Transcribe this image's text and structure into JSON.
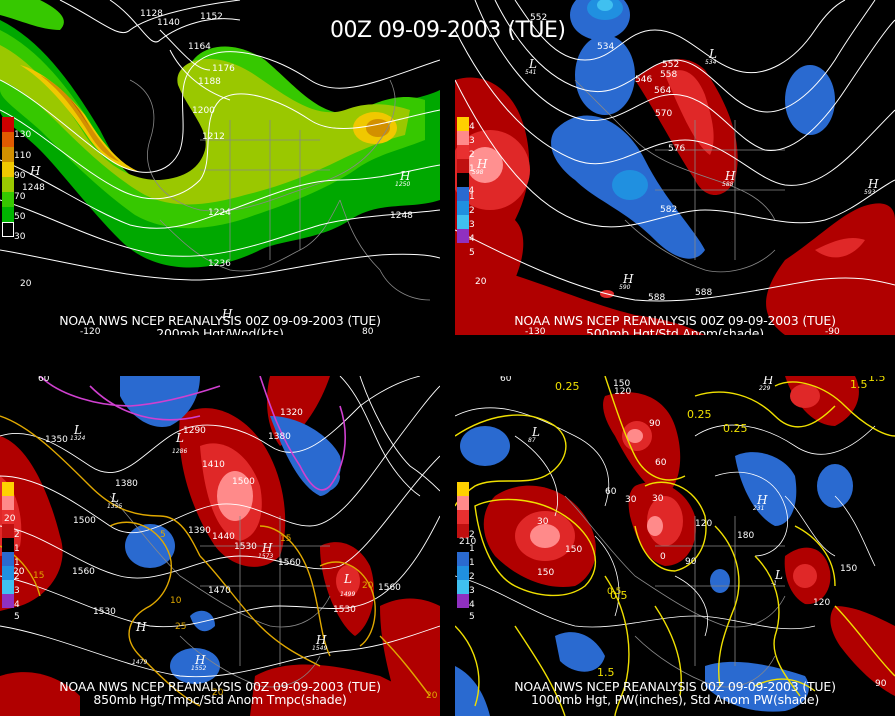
{
  "main_title": "00Z 09-09-2003 (TUE)",
  "panels": [
    {
      "id": "tl",
      "title_line1": "NOAA NWS NCEP REANALYSIS 00Z 09-09-2003 (TUE)",
      "title_line2": "200mb Hgt/Wnd(kts)",
      "legend": {
        "colors": [
          "#cc0000",
          "#e05a00",
          "#d29000",
          "#f0c800",
          "#9ac800",
          "#36c800",
          "#00b400",
          "#000000"
        ],
        "labels": [
          "130",
          "110",
          "90",
          "70",
          "50",
          "30"
        ]
      },
      "contour_labels": [
        "1128",
        "1140",
        "1152",
        "1164",
        "1176",
        "1188",
        "1200",
        "1212",
        "1224",
        "1236",
        "1248",
        "1248"
      ],
      "highs": [
        {
          "letter": "H",
          "value": "1248"
        },
        {
          "letter": "H",
          "value": "1250"
        },
        {
          "letter": "H",
          "value": ""
        }
      ],
      "axis_labels": [
        "20",
        "-120",
        "80"
      ]
    },
    {
      "id": "tr",
      "title_line1": "NOAA NWS NCEP REANALYSIS 00Z 09-09-2003 (TUE)",
      "title_line2": "500mb Hgt/Std Anom(shade)",
      "legend": {
        "colors": [
          "#ffd000",
          "#ff8a8a",
          "#e83030",
          "#c01010",
          "#000000",
          "#2a6ad0",
          "#2090e0",
          "#40c0f0",
          "#9030c0"
        ],
        "labels": [
          "4",
          "3",
          "2",
          "1",
          "1",
          "2",
          "3",
          "4",
          "5"
        ]
      },
      "contour_labels": [
        "552",
        "534",
        "546",
        "552",
        "558",
        "564",
        "570",
        "576",
        "582",
        "588",
        "588",
        "594",
        "588"
      ],
      "highs": [
        {
          "letter": "H",
          "value": "598"
        },
        {
          "letter": "H",
          "value": "588"
        },
        {
          "letter": "H",
          "value": "590"
        },
        {
          "letter": "H",
          "value": "593"
        }
      ],
      "lows": [
        {
          "letter": "L",
          "value": "541"
        },
        {
          "letter": "L",
          "value": "534"
        }
      ],
      "axis_labels": [
        "20",
        "-130",
        "-90"
      ]
    },
    {
      "id": "bl",
      "title_line1": "NOAA NWS NCEP REANALYSIS 00Z 09-09-2003 (TUE)",
      "title_line2": "850mb Hgt/Tmpc/Std Anom Tmpc(shade)",
      "legend": {
        "colors": [
          "#ffd000",
          "#ff8a8a",
          "#e83030",
          "#c01010",
          "#000000",
          "#2a6ad0",
          "#2090e0",
          "#40c0f0",
          "#9030c0"
        ],
        "labels": [
          "20",
          "2",
          "1",
          "1",
          "2",
          "3",
          "4",
          "5"
        ]
      },
      "contour_labels": [
        "1350",
        "1380",
        "1500",
        "1560",
        "1530",
        "1410",
        "1500",
        "1440",
        "1390",
        "1530",
        "1470",
        "1560",
        "1560",
        "1530",
        "1380",
        "1320",
        "1290",
        "15",
        "20",
        "25",
        "20",
        "15",
        "10",
        "5"
      ],
      "highs": [
        {
          "letter": "H",
          "value": "1573"
        },
        {
          "letter": "H",
          "value": "1552"
        },
        {
          "letter": "H",
          "value": "1549"
        },
        {
          "letter": "H",
          "value": "1479"
        }
      ],
      "lows": [
        {
          "letter": "L",
          "value": "1324"
        },
        {
          "letter": "L",
          "value": "1355"
        },
        {
          "letter": "L",
          "value": "1286"
        },
        {
          "letter": "L",
          "value": "1499"
        }
      ],
      "axis_labels": [
        "20",
        "60",
        "20"
      ]
    },
    {
      "id": "br",
      "title_line1": "NOAA NWS NCEP REANALYSIS 00Z 09-09-2003 (TUE)",
      "title_line2": "1000mb Hgt, PW(inches), Std Anom PW(shade)",
      "legend": {
        "colors": [
          "#ffd000",
          "#ff8a8a",
          "#e83030",
          "#c01010",
          "#000000",
          "#2a6ad0",
          "#2090e0",
          "#40c0f0",
          "#9030c0"
        ],
        "labels": [
          "210",
          "2",
          "1",
          "1",
          "2",
          "3",
          "4",
          "5"
        ]
      },
      "contour_labels": [
        "0.25",
        "150",
        "120",
        "0.25",
        "0.25",
        "1.5",
        "0.5",
        "1.5",
        "60",
        "30",
        "90",
        "120",
        "180",
        "150",
        "120",
        "150",
        "30",
        "0",
        "0.5",
        "30",
        "60",
        "90",
        "150",
        "1.5"
      ],
      "highs": [
        {
          "letter": "H",
          "value": "231"
        },
        {
          "letter": "H",
          "value": "229"
        }
      ],
      "lows": [
        {
          "letter": "L",
          "value": "87"
        },
        {
          "letter": "L",
          "value": "-1"
        }
      ],
      "axis_labels": [
        "60",
        "90"
      ]
    }
  ]
}
